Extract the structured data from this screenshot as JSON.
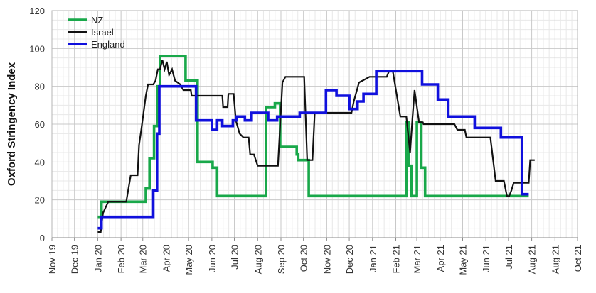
{
  "chart_data": {
    "type": "line",
    "title": "",
    "xlabel": "",
    "ylabel": "Oxford Stringency Index",
    "ylim": [
      0,
      120
    ],
    "yticks": [
      0,
      20,
      40,
      60,
      80,
      100,
      120
    ],
    "xlim": [
      "2019-11-01",
      "2021-10-01"
    ],
    "xticks": [
      "Nov 19",
      "Dec 19",
      "Jan 20",
      "Feb 20",
      "Mar 20",
      "Apr 20",
      "May 20",
      "Jun 20",
      "Jul 20",
      "Aug 20",
      "Sep 20",
      "Oct 20",
      "Nov 20",
      "Dec 20",
      "Jan 21",
      "Feb 21",
      "Mar 21",
      "Apr 21",
      "May 21",
      "Jun 21",
      "Jul 21",
      "Aug 21",
      "Aug 21",
      "Oct 21"
    ],
    "grid": true,
    "legend_position": "top-left",
    "series": [
      {
        "name": "NZ",
        "color": "#19a84a",
        "step": true,
        "points": [
          [
            "2020-01-01",
            11
          ],
          [
            "2020-01-06",
            19
          ],
          [
            "2020-02-27",
            19
          ],
          [
            "2020-03-05",
            26
          ],
          [
            "2020-03-10",
            42
          ],
          [
            "2020-03-16",
            59
          ],
          [
            "2020-03-20",
            80
          ],
          [
            "2020-03-24",
            96
          ],
          [
            "2020-04-27",
            83
          ],
          [
            "2020-05-13",
            40
          ],
          [
            "2020-06-02",
            37
          ],
          [
            "2020-06-08",
            22
          ],
          [
            "2020-07-29",
            22
          ],
          [
            "2020-08-12",
            69
          ],
          [
            "2020-08-24",
            71
          ],
          [
            "2020-08-31",
            48
          ],
          [
            "2020-09-22",
            44
          ],
          [
            "2020-09-24",
            41
          ],
          [
            "2020-10-08",
            22
          ],
          [
            "2021-02-14",
            22
          ],
          [
            "2021-02-15",
            61
          ],
          [
            "2021-02-18",
            38
          ],
          [
            "2021-02-22",
            22
          ],
          [
            "2021-02-28",
            22
          ],
          [
            "2021-03-01",
            61
          ],
          [
            "2021-03-07",
            37
          ],
          [
            "2021-03-12",
            22
          ],
          [
            "2021-07-28",
            22
          ]
        ]
      },
      {
        "name": "Israel",
        "color": "#111111",
        "step": false,
        "points": [
          [
            "2020-01-01",
            3
          ],
          [
            "2020-01-05",
            3
          ],
          [
            "2020-01-08",
            13
          ],
          [
            "2020-01-15",
            19
          ],
          [
            "2020-02-08",
            19
          ],
          [
            "2020-02-14",
            33
          ],
          [
            "2020-02-23",
            33
          ],
          [
            "2020-02-25",
            49
          ],
          [
            "2020-02-28",
            57
          ],
          [
            "2020-03-05",
            75
          ],
          [
            "2020-03-08",
            81
          ],
          [
            "2020-03-15",
            81
          ],
          [
            "2020-03-18",
            83
          ],
          [
            "2020-03-21",
            89
          ],
          [
            "2020-03-24",
            89
          ],
          [
            "2020-03-27",
            94
          ],
          [
            "2020-03-30",
            89
          ],
          [
            "2020-04-02",
            93
          ],
          [
            "2020-04-05",
            86
          ],
          [
            "2020-04-09",
            89
          ],
          [
            "2020-04-13",
            83
          ],
          [
            "2020-04-20",
            81
          ],
          [
            "2020-04-24",
            78
          ],
          [
            "2020-05-04",
            78
          ],
          [
            "2020-05-05",
            75
          ],
          [
            "2020-06-15",
            75
          ],
          [
            "2020-06-16",
            69
          ],
          [
            "2020-06-22",
            69
          ],
          [
            "2020-06-23",
            76
          ],
          [
            "2020-06-30",
            76
          ],
          [
            "2020-07-03",
            62
          ],
          [
            "2020-07-08",
            55
          ],
          [
            "2020-07-13",
            53
          ],
          [
            "2020-07-20",
            53
          ],
          [
            "2020-07-22",
            44
          ],
          [
            "2020-07-27",
            44
          ],
          [
            "2020-08-01",
            38
          ],
          [
            "2020-08-28",
            38
          ],
          [
            "2020-09-03",
            82
          ],
          [
            "2020-09-07",
            85
          ],
          [
            "2020-10-02",
            85
          ],
          [
            "2020-10-06",
            41
          ],
          [
            "2020-10-13",
            41
          ],
          [
            "2020-10-16",
            66
          ],
          [
            "2020-12-04",
            66
          ],
          [
            "2020-12-07",
            72
          ],
          [
            "2020-12-14",
            82
          ],
          [
            "2020-12-28",
            85
          ],
          [
            "2021-01-20",
            85
          ],
          [
            "2021-01-23",
            88
          ],
          [
            "2021-01-28",
            88
          ],
          [
            "2021-02-07",
            64
          ],
          [
            "2021-02-15",
            64
          ],
          [
            "2021-02-20",
            45
          ],
          [
            "2021-02-23",
            62
          ],
          [
            "2021-02-26",
            78
          ],
          [
            "2021-03-04",
            61
          ],
          [
            "2021-03-09",
            61
          ],
          [
            "2021-03-10",
            60
          ],
          [
            "2021-04-20",
            60
          ],
          [
            "2021-04-24",
            57
          ],
          [
            "2021-05-04",
            57
          ],
          [
            "2021-05-06",
            53
          ],
          [
            "2021-06-07",
            53
          ],
          [
            "2021-06-14",
            30
          ],
          [
            "2021-06-25",
            30
          ],
          [
            "2021-06-29",
            22
          ],
          [
            "2021-07-02",
            22
          ],
          [
            "2021-07-05",
            25
          ],
          [
            "2021-07-08",
            29
          ],
          [
            "2021-07-28",
            29
          ],
          [
            "2021-07-30",
            41
          ],
          [
            "2021-08-05",
            41
          ]
        ]
      },
      {
        "name": "England",
        "color": "#1010dd",
        "step": true,
        "points": [
          [
            "2020-01-01",
            5
          ],
          [
            "2020-01-06",
            11
          ],
          [
            "2020-03-08",
            11
          ],
          [
            "2020-03-15",
            25
          ],
          [
            "2020-03-20",
            55
          ],
          [
            "2020-03-23",
            80
          ],
          [
            "2020-05-01",
            80
          ],
          [
            "2020-05-11",
            62
          ],
          [
            "2020-06-01",
            57
          ],
          [
            "2020-06-08",
            62
          ],
          [
            "2020-06-15",
            59
          ],
          [
            "2020-06-29",
            62
          ],
          [
            "2020-07-04",
            64
          ],
          [
            "2020-07-15",
            62
          ],
          [
            "2020-07-24",
            66
          ],
          [
            "2020-08-15",
            62
          ],
          [
            "2020-08-27",
            64
          ],
          [
            "2020-09-26",
            66
          ],
          [
            "2020-10-31",
            78
          ],
          [
            "2020-11-14",
            75
          ],
          [
            "2020-12-01",
            68
          ],
          [
            "2020-12-12",
            72
          ],
          [
            "2020-12-20",
            76
          ],
          [
            "2021-01-06",
            88
          ],
          [
            "2021-03-08",
            81
          ],
          [
            "2021-03-29",
            73
          ],
          [
            "2021-04-12",
            64
          ],
          [
            "2021-05-17",
            58
          ],
          [
            "2021-06-21",
            53
          ],
          [
            "2021-07-19",
            23
          ],
          [
            "2021-07-28",
            23
          ]
        ]
      }
    ]
  }
}
